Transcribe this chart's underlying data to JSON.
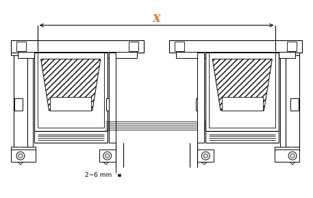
{
  "bg_color": "#ffffff",
  "line_color": "#000000",
  "x_label_color": "#e07020",
  "dim_label": "2~6 mm",
  "x_label": "X",
  "figsize": [
    4.57,
    2.9
  ],
  "dpi": 100
}
